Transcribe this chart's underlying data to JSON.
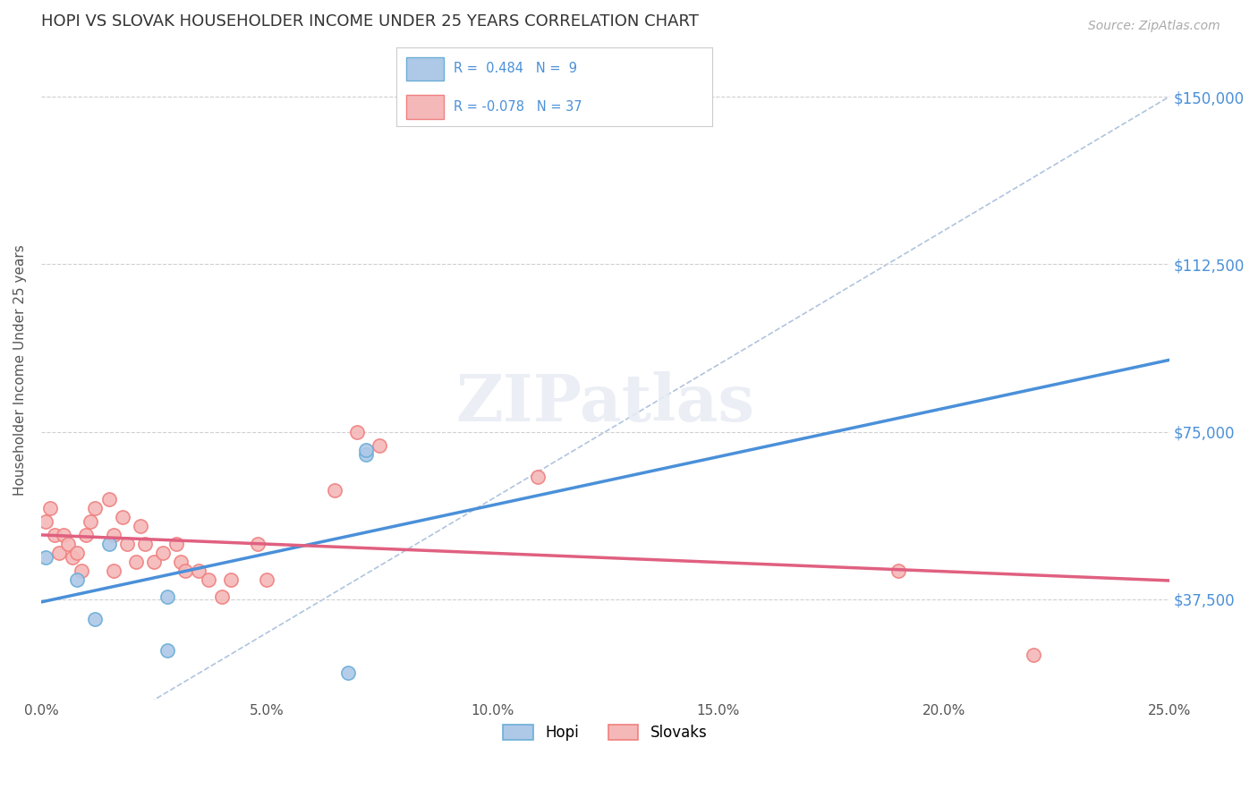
{
  "title": "HOPI VS SLOVAK HOUSEHOLDER INCOME UNDER 25 YEARS CORRELATION CHART",
  "source": "Source: ZipAtlas.com",
  "xlabel_ticks": [
    "0.0%",
    "5.0%",
    "10.0%",
    "15.0%",
    "20.0%",
    "25.0%"
  ],
  "xlabel_vals": [
    0.0,
    0.05,
    0.1,
    0.15,
    0.2,
    0.25
  ],
  "ylabel_ticks": [
    "$37,500",
    "$75,000",
    "$112,500",
    "$150,000"
  ],
  "ylabel_vals": [
    37500,
    75000,
    112500,
    150000
  ],
  "xlim": [
    0.0,
    0.25
  ],
  "ylim": [
    15000,
    162500
  ],
  "watermark": "ZIPatlas",
  "legend_hopi": "Hopi",
  "legend_slovak": "Slovaks",
  "hopi_r": "0.484",
  "hopi_n": "9",
  "slovak_r": "-0.078",
  "slovak_n": "37",
  "hopi_color": "#6baed6",
  "hopi_fill": "#aec8e8",
  "slovak_color": "#f08080",
  "slovak_fill": "#f5b8b8",
  "hopi_x": [
    0.001,
    0.008,
    0.012,
    0.015,
    0.028,
    0.028,
    0.068,
    0.072,
    0.072
  ],
  "hopi_y": [
    47000,
    42000,
    33000,
    50000,
    38000,
    26000,
    21000,
    70000,
    71000
  ],
  "slovak_x": [
    0.001,
    0.002,
    0.003,
    0.004,
    0.005,
    0.006,
    0.007,
    0.008,
    0.009,
    0.01,
    0.011,
    0.012,
    0.015,
    0.016,
    0.016,
    0.018,
    0.019,
    0.021,
    0.022,
    0.023,
    0.025,
    0.027,
    0.03,
    0.031,
    0.032,
    0.035,
    0.037,
    0.04,
    0.042,
    0.048,
    0.05,
    0.065,
    0.07,
    0.075,
    0.11,
    0.19,
    0.22
  ],
  "slovak_y": [
    55000,
    58000,
    52000,
    48000,
    52000,
    50000,
    47000,
    48000,
    44000,
    52000,
    55000,
    58000,
    60000,
    52000,
    44000,
    56000,
    50000,
    46000,
    54000,
    50000,
    46000,
    48000,
    50000,
    46000,
    44000,
    44000,
    42000,
    38000,
    42000,
    50000,
    42000,
    62000,
    75000,
    72000,
    65000,
    44000,
    25000
  ],
  "ref_line_x": [
    0.0,
    0.25
  ],
  "ref_line_y": [
    0.0,
    150000
  ],
  "background_color": "#ffffff",
  "grid_color": "#d0d0d0"
}
